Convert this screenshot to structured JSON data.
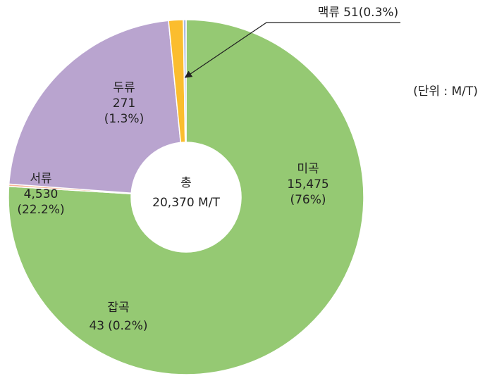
{
  "chart_data": {
    "type": "pie",
    "donut": true,
    "categories": [
      "미곡",
      "잡곡",
      "서류",
      "두류",
      "맥류"
    ],
    "values": [
      15475,
      43,
      4530,
      271,
      51
    ],
    "value_labels": [
      "15,475",
      "43",
      "4,530",
      "271",
      "51"
    ],
    "percents": [
      76,
      0.2,
      22.2,
      1.3,
      0.3
    ],
    "percent_labels": [
      "(76%)",
      "(0.2%)",
      "(22.2%)",
      "(1.3%)",
      "(0.3%)"
    ],
    "colors": [
      "#95c973",
      "#f7b597",
      "#b9a4cf",
      "#fbbd2e",
      "#a8b9e0"
    ],
    "center_title": "총",
    "center_label": "20,370 M/T",
    "unit": "(단위 : M/T)"
  }
}
